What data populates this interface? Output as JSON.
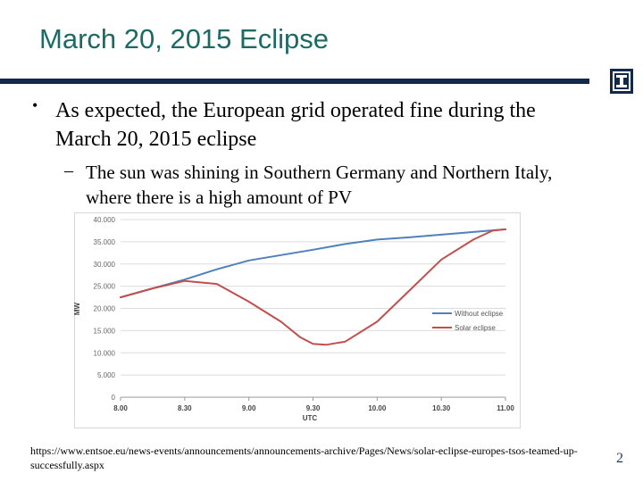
{
  "slide": {
    "title": "March 20, 2015 Eclipse",
    "bullet1": "As expected, the European grid operated fine during the March 20, 2015 eclipse",
    "bullet2": "The sun was shining in Southern Germany and Northern Italy, where there is a high amount of PV",
    "source": "https://www.entsoe.eu/news-events/announcements/announcements-archive/Pages/News/solar-eclipse-europes-tsos-teamed-up-successfully.aspx",
    "page_number": "2",
    "logo_letter": "I"
  },
  "chart_data": {
    "type": "line",
    "xlabel": "UTC",
    "ylabel": "MW",
    "x_ticks": [
      "8.00",
      "8.30",
      "9.00",
      "9.30",
      "10.00",
      "10.30",
      "11.00"
    ],
    "y_ticks": [
      "0",
      "5.000",
      "10.000",
      "15.000",
      "20.000",
      "25.000",
      "30.000",
      "35.000",
      "40.000"
    ],
    "xlim": [
      8.0,
      11.0
    ],
    "ylim": [
      0,
      40000
    ],
    "grid": "horizontal",
    "legend_position": "right",
    "series": [
      {
        "name": "Without eclipse",
        "color": "#4f81bd",
        "x": [
          8.0,
          8.25,
          8.5,
          8.75,
          9.0,
          9.25,
          9.5,
          9.75,
          10.0,
          10.25,
          10.5,
          10.75,
          11.0
        ],
        "values": [
          22500,
          24500,
          26500,
          28800,
          30800,
          32000,
          33200,
          34500,
          35500,
          36000,
          36600,
          37200,
          37800
        ]
      },
      {
        "name": "Solar eclipse",
        "color": "#c0504d",
        "x": [
          8.0,
          8.25,
          8.5,
          8.75,
          9.0,
          9.25,
          9.4,
          9.5,
          9.6,
          9.75,
          10.0,
          10.25,
          10.5,
          10.75,
          10.9,
          11.0
        ],
        "values": [
          22500,
          24500,
          26200,
          25500,
          21500,
          17000,
          13500,
          12000,
          11800,
          12500,
          17000,
          24000,
          31000,
          35500,
          37500,
          37800
        ]
      }
    ]
  }
}
